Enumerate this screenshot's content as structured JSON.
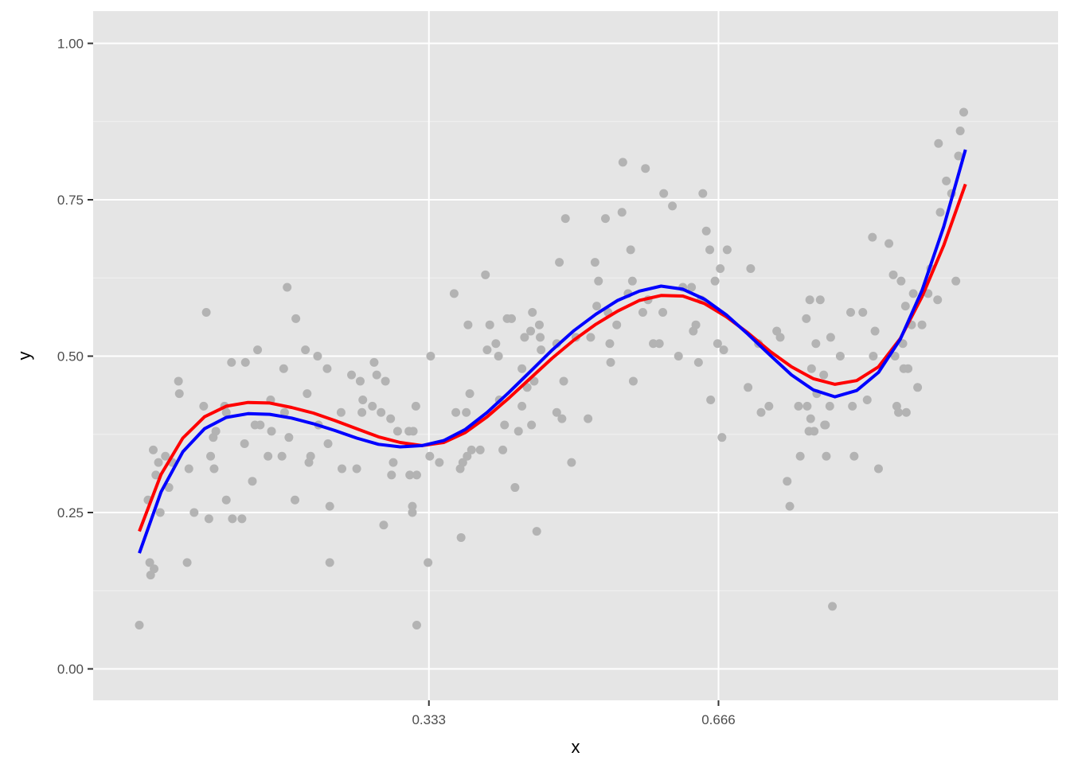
{
  "chart_data": {
    "type": "scatter",
    "xlabel": "x",
    "ylabel": "y",
    "xlim": [
      -0.05,
      1.06
    ],
    "ylim": [
      -0.1,
      1.05
    ],
    "x_ticks": [
      0.333,
      0.666
    ],
    "x_tick_labels": [
      "0.333",
      "0.666"
    ],
    "y_ticks": [
      0.0,
      0.25,
      0.5,
      0.75,
      1.0
    ],
    "y_tick_labels": [
      "0.00",
      "0.25",
      "0.50",
      "0.75",
      "1.00"
    ],
    "grid": true,
    "background": "#e5e5e5",
    "points_color": "#b3b3b3",
    "points": [
      [
        0.0,
        0.07
      ],
      [
        0.01,
        0.27
      ],
      [
        0.012,
        0.17
      ],
      [
        0.013,
        0.15
      ],
      [
        0.016,
        0.35
      ],
      [
        0.017,
        0.16
      ],
      [
        0.019,
        0.31
      ],
      [
        0.022,
        0.33
      ],
      [
        0.024,
        0.25
      ],
      [
        0.03,
        0.34
      ],
      [
        0.034,
        0.29
      ],
      [
        0.038,
        0.33
      ],
      [
        0.045,
        0.46
      ],
      [
        0.046,
        0.44
      ],
      [
        0.055,
        0.17
      ],
      [
        0.057,
        0.32
      ],
      [
        0.063,
        0.25
      ],
      [
        0.074,
        0.42
      ],
      [
        0.077,
        0.57
      ],
      [
        0.08,
        0.24
      ],
      [
        0.082,
        0.34
      ],
      [
        0.085,
        0.37
      ],
      [
        0.086,
        0.32
      ],
      [
        0.088,
        0.38
      ],
      [
        0.098,
        0.42
      ],
      [
        0.1,
        0.41
      ],
      [
        0.1,
        0.27
      ],
      [
        0.106,
        0.49
      ],
      [
        0.107,
        0.24
      ],
      [
        0.118,
        0.24
      ],
      [
        0.121,
        0.36
      ],
      [
        0.122,
        0.49
      ],
      [
        0.13,
        0.3
      ],
      [
        0.133,
        0.39
      ],
      [
        0.136,
        0.51
      ],
      [
        0.139,
        0.39
      ],
      [
        0.148,
        0.34
      ],
      [
        0.151,
        0.43
      ],
      [
        0.152,
        0.38
      ],
      [
        0.164,
        0.34
      ],
      [
        0.166,
        0.48
      ],
      [
        0.167,
        0.41
      ],
      [
        0.17,
        0.61
      ],
      [
        0.172,
        0.37
      ],
      [
        0.179,
        0.27
      ],
      [
        0.18,
        0.56
      ],
      [
        0.191,
        0.51
      ],
      [
        0.193,
        0.44
      ],
      [
        0.195,
        0.33
      ],
      [
        0.197,
        0.34
      ],
      [
        0.205,
        0.5
      ],
      [
        0.206,
        0.39
      ],
      [
        0.216,
        0.48
      ],
      [
        0.217,
        0.36
      ],
      [
        0.219,
        0.26
      ],
      [
        0.219,
        0.17
      ],
      [
        0.232,
        0.41
      ],
      [
        0.233,
        0.32
      ],
      [
        0.244,
        0.47
      ],
      [
        0.25,
        0.32
      ],
      [
        0.254,
        0.46
      ],
      [
        0.256,
        0.41
      ],
      [
        0.257,
        0.43
      ],
      [
        0.268,
        0.42
      ],
      [
        0.27,
        0.49
      ],
      [
        0.273,
        0.47
      ],
      [
        0.278,
        0.41
      ],
      [
        0.281,
        0.23
      ],
      [
        0.283,
        0.46
      ],
      [
        0.289,
        0.4
      ],
      [
        0.29,
        0.31
      ],
      [
        0.292,
        0.33
      ],
      [
        0.297,
        0.38
      ],
      [
        0.31,
        0.38
      ],
      [
        0.311,
        0.31
      ],
      [
        0.314,
        0.26
      ],
      [
        0.314,
        0.25
      ],
      [
        0.315,
        0.38
      ],
      [
        0.318,
        0.42
      ],
      [
        0.319,
        0.31
      ],
      [
        0.319,
        0.07
      ],
      [
        0.332,
        0.17
      ],
      [
        0.334,
        0.34
      ],
      [
        0.335,
        0.5
      ],
      [
        0.345,
        0.33
      ],
      [
        0.362,
        0.6
      ],
      [
        0.364,
        0.41
      ],
      [
        0.369,
        0.32
      ],
      [
        0.37,
        0.21
      ],
      [
        0.372,
        0.33
      ],
      [
        0.376,
        0.41
      ],
      [
        0.377,
        0.34
      ],
      [
        0.378,
        0.55
      ],
      [
        0.38,
        0.44
      ],
      [
        0.382,
        0.35
      ],
      [
        0.392,
        0.35
      ],
      [
        0.398,
        0.63
      ],
      [
        0.4,
        0.51
      ],
      [
        0.403,
        0.55
      ],
      [
        0.41,
        0.52
      ],
      [
        0.413,
        0.5
      ],
      [
        0.414,
        0.43
      ],
      [
        0.418,
        0.35
      ],
      [
        0.42,
        0.39
      ],
      [
        0.423,
        0.56
      ],
      [
        0.428,
        0.56
      ],
      [
        0.432,
        0.29
      ],
      [
        0.436,
        0.38
      ],
      [
        0.44,
        0.42
      ],
      [
        0.44,
        0.48
      ],
      [
        0.443,
        0.53
      ],
      [
        0.446,
        0.45
      ],
      [
        0.45,
        0.54
      ],
      [
        0.451,
        0.39
      ],
      [
        0.452,
        0.57
      ],
      [
        0.454,
        0.46
      ],
      [
        0.457,
        0.22
      ],
      [
        0.46,
        0.55
      ],
      [
        0.461,
        0.53
      ],
      [
        0.462,
        0.51
      ],
      [
        0.48,
        0.52
      ],
      [
        0.48,
        0.41
      ],
      [
        0.483,
        0.65
      ],
      [
        0.486,
        0.4
      ],
      [
        0.488,
        0.46
      ],
      [
        0.49,
        0.72
      ],
      [
        0.497,
        0.33
      ],
      [
        0.502,
        0.53
      ],
      [
        0.516,
        0.4
      ],
      [
        0.519,
        0.53
      ],
      [
        0.524,
        0.65
      ],
      [
        0.526,
        0.58
      ],
      [
        0.528,
        0.62
      ],
      [
        0.536,
        0.72
      ],
      [
        0.539,
        0.57
      ],
      [
        0.541,
        0.52
      ],
      [
        0.542,
        0.49
      ],
      [
        0.549,
        0.55
      ],
      [
        0.555,
        0.73
      ],
      [
        0.556,
        0.81
      ],
      [
        0.562,
        0.6
      ],
      [
        0.565,
        0.67
      ],
      [
        0.567,
        0.62
      ],
      [
        0.568,
        0.46
      ],
      [
        0.579,
        0.57
      ],
      [
        0.582,
        0.8
      ],
      [
        0.585,
        0.59
      ],
      [
        0.591,
        0.52
      ],
      [
        0.598,
        0.52
      ],
      [
        0.602,
        0.57
      ],
      [
        0.603,
        0.76
      ],
      [
        0.613,
        0.74
      ],
      [
        0.62,
        0.5
      ],
      [
        0.625,
        0.61
      ],
      [
        0.635,
        0.61
      ],
      [
        0.637,
        0.54
      ],
      [
        0.64,
        0.55
      ],
      [
        0.643,
        0.49
      ],
      [
        0.646,
        0.59
      ],
      [
        0.648,
        0.76
      ],
      [
        0.652,
        0.7
      ],
      [
        0.656,
        0.67
      ],
      [
        0.657,
        0.43
      ],
      [
        0.662,
        0.62
      ],
      [
        0.665,
        0.52
      ],
      [
        0.668,
        0.64
      ],
      [
        0.67,
        0.37
      ],
      [
        0.672,
        0.51
      ],
      [
        0.676,
        0.67
      ],
      [
        0.7,
        0.45
      ],
      [
        0.703,
        0.64
      ],
      [
        0.712,
        0.52
      ],
      [
        0.715,
        0.41
      ],
      [
        0.724,
        0.42
      ],
      [
        0.733,
        0.54
      ],
      [
        0.737,
        0.53
      ],
      [
        0.745,
        0.3
      ],
      [
        0.748,
        0.26
      ],
      [
        0.758,
        0.42
      ],
      [
        0.76,
        0.34
      ],
      [
        0.767,
        0.56
      ],
      [
        0.768,
        0.42
      ],
      [
        0.77,
        0.38
      ],
      [
        0.771,
        0.59
      ],
      [
        0.772,
        0.4
      ],
      [
        0.773,
        0.48
      ],
      [
        0.776,
        0.38
      ],
      [
        0.778,
        0.52
      ],
      [
        0.779,
        0.44
      ],
      [
        0.783,
        0.59
      ],
      [
        0.787,
        0.47
      ],
      [
        0.788,
        0.39
      ],
      [
        0.789,
        0.39
      ],
      [
        0.79,
        0.34
      ],
      [
        0.794,
        0.42
      ],
      [
        0.795,
        0.53
      ],
      [
        0.797,
        0.1
      ],
      [
        0.806,
        0.5
      ],
      [
        0.818,
        0.57
      ],
      [
        0.82,
        0.42
      ],
      [
        0.822,
        0.34
      ],
      [
        0.832,
        0.57
      ],
      [
        0.837,
        0.43
      ],
      [
        0.843,
        0.69
      ],
      [
        0.844,
        0.5
      ],
      [
        0.846,
        0.54
      ],
      [
        0.85,
        0.32
      ],
      [
        0.862,
        0.68
      ],
      [
        0.867,
        0.63
      ],
      [
        0.869,
        0.5
      ],
      [
        0.871,
        0.42
      ],
      [
        0.873,
        0.41
      ],
      [
        0.876,
        0.62
      ],
      [
        0.878,
        0.52
      ],
      [
        0.879,
        0.48
      ],
      [
        0.881,
        0.58
      ],
      [
        0.882,
        0.41
      ],
      [
        0.884,
        0.48
      ],
      [
        0.888,
        0.55
      ],
      [
        0.89,
        0.6
      ],
      [
        0.895,
        0.45
      ],
      [
        0.9,
        0.55
      ],
      [
        0.907,
        0.6
      ],
      [
        0.91,
        0.64
      ],
      [
        0.918,
        0.59
      ],
      [
        0.919,
        0.84
      ],
      [
        0.921,
        0.73
      ],
      [
        0.928,
        0.78
      ],
      [
        0.934,
        0.76
      ],
      [
        0.939,
        0.62
      ],
      [
        0.942,
        0.82
      ],
      [
        0.944,
        0.86
      ],
      [
        0.948,
        0.89
      ]
    ],
    "series": [
      {
        "name": "",
        "color": "#ff0000",
        "x": [
          0.0,
          0.025,
          0.05,
          0.075,
          0.1,
          0.125,
          0.15,
          0.175,
          0.2,
          0.225,
          0.25,
          0.275,
          0.3,
          0.325,
          0.35,
          0.375,
          0.4,
          0.425,
          0.45,
          0.475,
          0.5,
          0.525,
          0.55,
          0.575,
          0.6,
          0.625,
          0.65,
          0.675,
          0.7,
          0.725,
          0.75,
          0.775,
          0.8,
          0.825,
          0.85,
          0.875,
          0.9,
          0.925,
          0.95
        ],
        "y": [
          0.22,
          0.311,
          0.369,
          0.403,
          0.42,
          0.426,
          0.425,
          0.418,
          0.409,
          0.397,
          0.384,
          0.371,
          0.362,
          0.357,
          0.362,
          0.378,
          0.403,
          0.433,
          0.465,
          0.497,
          0.526,
          0.551,
          0.572,
          0.589,
          0.597,
          0.596,
          0.584,
          0.563,
          0.537,
          0.508,
          0.483,
          0.464,
          0.455,
          0.461,
          0.483,
          0.528,
          0.595,
          0.677,
          0.775
        ]
      },
      {
        "name": "",
        "color": "#0000ff",
        "x": [
          0.0,
          0.025,
          0.05,
          0.075,
          0.1,
          0.125,
          0.15,
          0.175,
          0.2,
          0.225,
          0.25,
          0.275,
          0.3,
          0.325,
          0.35,
          0.375,
          0.4,
          0.425,
          0.45,
          0.475,
          0.5,
          0.525,
          0.55,
          0.575,
          0.6,
          0.625,
          0.65,
          0.675,
          0.7,
          0.725,
          0.75,
          0.775,
          0.8,
          0.825,
          0.85,
          0.875,
          0.9,
          0.925,
          0.95
        ],
        "y": [
          0.185,
          0.283,
          0.347,
          0.384,
          0.402,
          0.408,
          0.407,
          0.401,
          0.392,
          0.381,
          0.369,
          0.359,
          0.355,
          0.357,
          0.365,
          0.383,
          0.41,
          0.442,
          0.476,
          0.51,
          0.541,
          0.567,
          0.589,
          0.604,
          0.612,
          0.607,
          0.591,
          0.566,
          0.535,
          0.502,
          0.47,
          0.446,
          0.435,
          0.445,
          0.474,
          0.527,
          0.605,
          0.707,
          0.83
        ]
      }
    ]
  }
}
